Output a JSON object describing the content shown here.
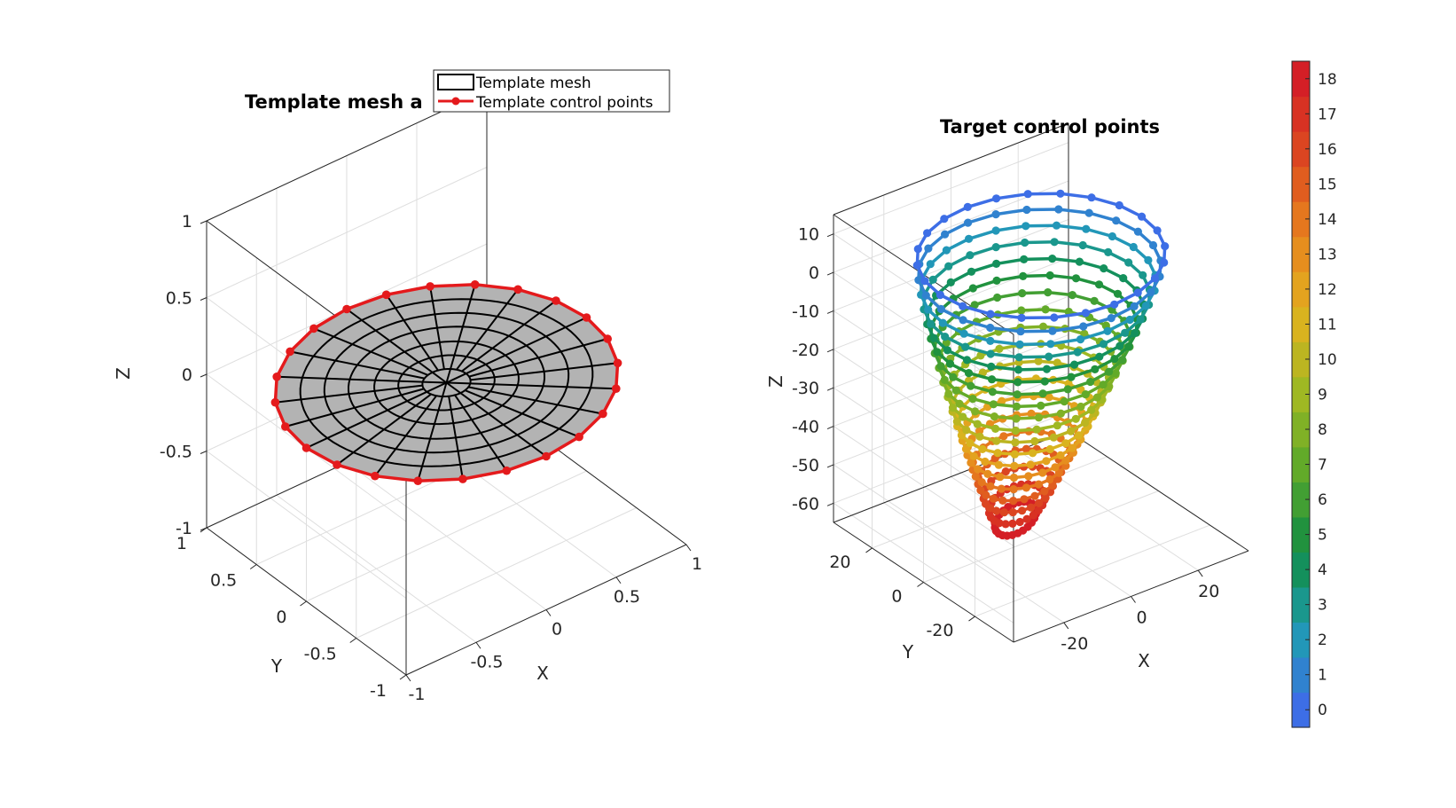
{
  "chart_data": [
    {
      "type": "surface-mesh-3d",
      "title": "Template mesh a",
      "xlabel": "X",
      "ylabel": "Y",
      "zlabel": "Z",
      "xlim": [
        -1,
        1
      ],
      "ylim": [
        -1,
        1
      ],
      "zlim": [
        -1,
        1
      ],
      "xticks": [
        "-1",
        "-0.5",
        "0",
        "0.5",
        "1"
      ],
      "yticks": [
        "-1",
        "-0.5",
        "0",
        "0.5",
        "1"
      ],
      "zticks": [
        "-1",
        "-0.5",
        "0",
        "0.5",
        "1"
      ],
      "grid": true,
      "legend": {
        "placement": "top",
        "entries": [
          {
            "label": "Template mesh",
            "style": "patch",
            "color": "#000000"
          },
          {
            "label": "Template control points",
            "style": "line-marker",
            "color": "#e41a1c"
          }
        ]
      },
      "mesh": {
        "shape": "disc",
        "radius": 1,
        "z": 0,
        "face_color": "#b3b3b3",
        "edge_color": "#000000"
      },
      "control_points": {
        "count": 24,
        "radius": 1,
        "z": 0,
        "color": "#e41a1c"
      }
    },
    {
      "type": "scatter-line-3d",
      "title": "Target control points",
      "xlabel": "X",
      "ylabel": "Y",
      "zlabel": "Z",
      "xlim": [
        -35,
        35
      ],
      "ylim": [
        -35,
        35
      ],
      "zlim": [
        -65,
        15
      ],
      "xticks": [
        "-20",
        "0",
        "20"
      ],
      "yticks": [
        "-20",
        "0",
        "20"
      ],
      "zticks": [
        "-60",
        "-50",
        "-40",
        "-30",
        "-20",
        "-10",
        "0",
        "10"
      ],
      "grid": true,
      "layers": {
        "count": 19,
        "points_per_layer": 24,
        "z_top": 8,
        "z_bottom": -62,
        "radius_top": 30,
        "radius_bottom": 5
      },
      "colorbar": {
        "ticks": [
          "0",
          "1",
          "2",
          "3",
          "4",
          "5",
          "6",
          "7",
          "8",
          "9",
          "10",
          "11",
          "12",
          "13",
          "14",
          "15",
          "16",
          "17",
          "18"
        ],
        "range": [
          -0.5,
          18.5
        ],
        "colormap": [
          "#3d6ee6",
          "#1f9cb2",
          "#118c44",
          "#5aa82a",
          "#9fb823",
          "#e0b21f",
          "#e8841e",
          "#dc4a20",
          "#d41f26"
        ]
      }
    }
  ]
}
